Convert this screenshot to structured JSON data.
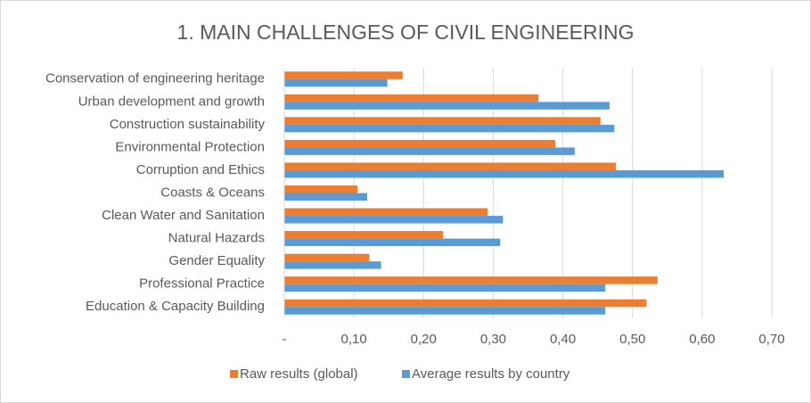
{
  "chart_data": {
    "type": "bar",
    "orientation": "horizontal",
    "title": "1. MAIN CHALLENGES OF CIVIL ENGINEERING",
    "categories": [
      "Conservation of engineering heritage",
      "Urban development and growth",
      "Construction sustainability",
      "Environmental Protection",
      "Corruption and Ethics",
      "Coasts & Oceans",
      "Clean Water and Sanitation",
      "Natural Hazards",
      "Gender Equality",
      "Professional Practice",
      "Education & Capacity Building"
    ],
    "series": [
      {
        "name": "Raw results (global)",
        "color": "#ed7d31",
        "values": [
          0.17,
          0.365,
          0.454,
          0.389,
          0.476,
          0.105,
          0.292,
          0.228,
          0.122,
          0.536,
          0.52
        ]
      },
      {
        "name": "Average results by country",
        "color": "#5b9bd5",
        "values": [
          0.148,
          0.467,
          0.474,
          0.417,
          0.631,
          0.119,
          0.314,
          0.31,
          0.139,
          0.461,
          0.461
        ]
      }
    ],
    "xlim": [
      0,
      0.7
    ],
    "xticks": [
      {
        "value": 0,
        "label": "-"
      },
      {
        "value": 0.1,
        "label": "0,10"
      },
      {
        "value": 0.2,
        "label": "0,20"
      },
      {
        "value": 0.3,
        "label": "0,30"
      },
      {
        "value": 0.4,
        "label": "0,40"
      },
      {
        "value": 0.5,
        "label": "0,50"
      },
      {
        "value": 0.6,
        "label": "0,60"
      },
      {
        "value": 0.7,
        "label": "0,70"
      }
    ],
    "grid": true,
    "legend": "bottom"
  }
}
